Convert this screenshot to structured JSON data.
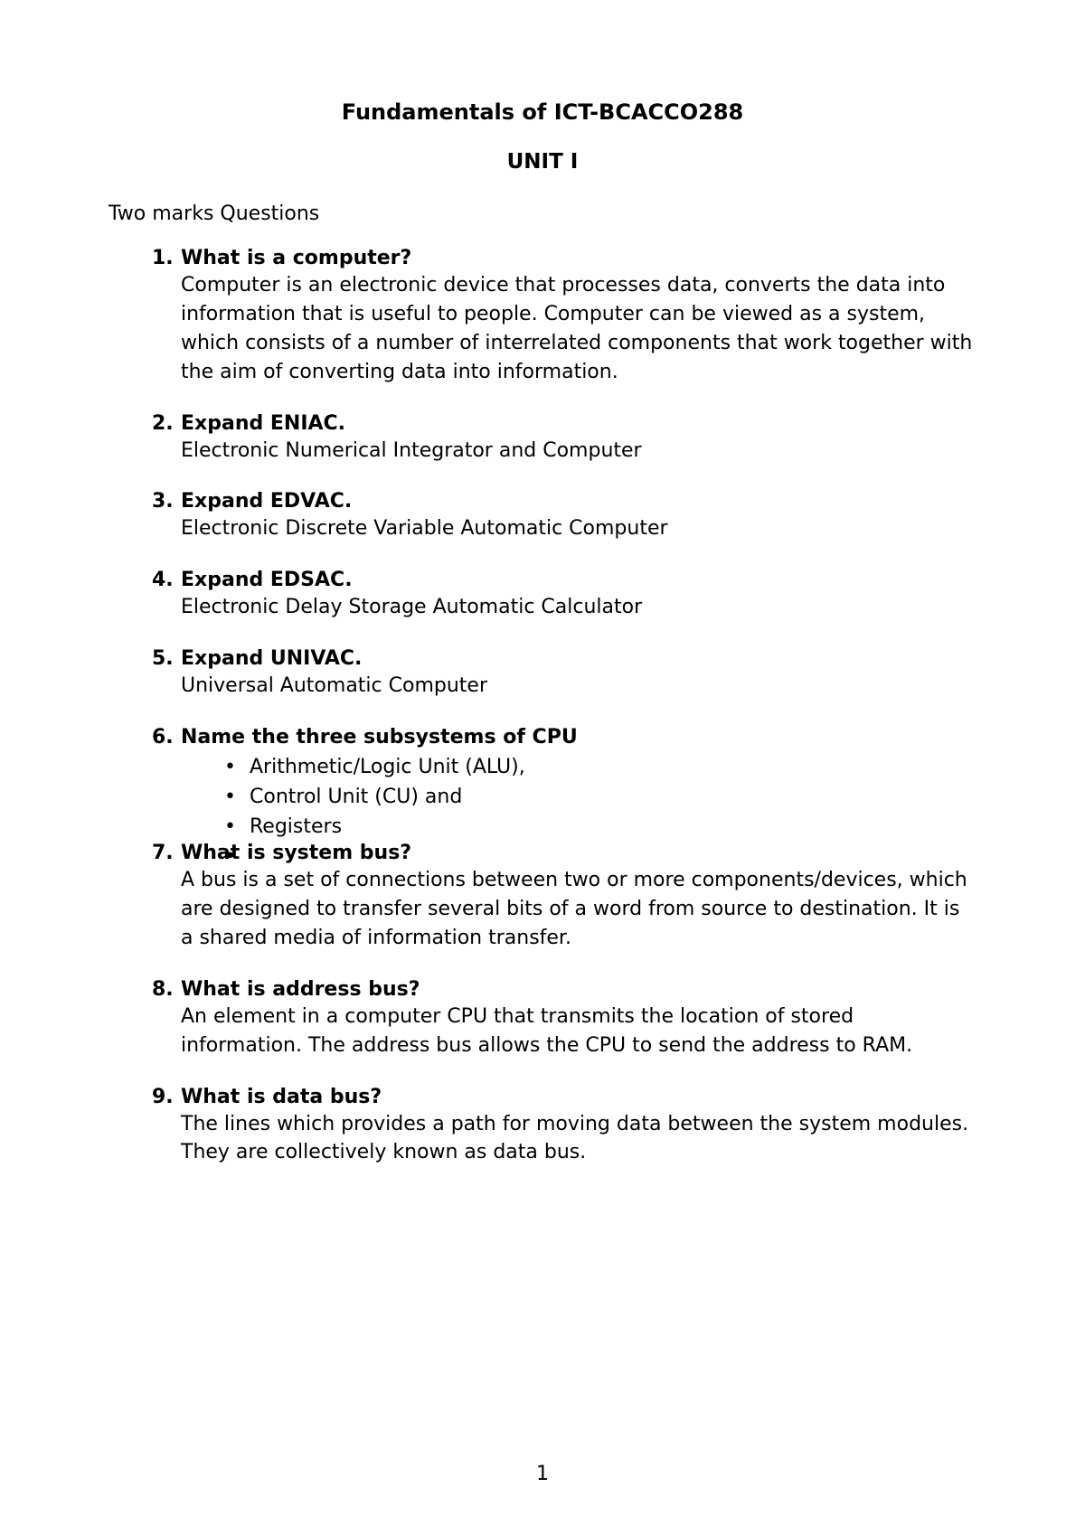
{
  "document": {
    "title": "Fundamentals of ICT-BCACCO288",
    "unit": "UNIT I",
    "section_header": "Two marks Questions",
    "page_number": "1",
    "colors": {
      "background": "#ffffff",
      "text": "#000000"
    },
    "typography": {
      "title_fontsize": 24,
      "body_fontsize": 22,
      "font_family": "DejaVu Sans"
    },
    "questions": [
      {
        "number": "1.",
        "question": "What is a computer?",
        "answer": " Computer is an electronic device that processes data, converts the data into information that is useful to people. Computer can be viewed as a system, which consists of a number of interrelated components that work together with the aim of converting data into information.",
        "bullets": []
      },
      {
        "number": "2.",
        "question": "Expand ENIAC.",
        "answer": "Electronic Numerical Integrator and Computer",
        "bullets": []
      },
      {
        "number": "3.",
        "question": "Expand EDVAC.",
        "answer": "Electronic Discrete Variable Automatic Computer",
        "bullets": []
      },
      {
        "number": "4.",
        "question": "Expand EDSAC.",
        "answer": "Electronic Delay Storage Automatic Calculator",
        "bullets": []
      },
      {
        "number": "5.",
        "question": "Expand UNIVAC.",
        "answer": "Universal Automatic Computer",
        "bullets": []
      },
      {
        "number": "6.",
        "question": "Name the three subsystems of CPU",
        "answer": "",
        "bullets": [
          "Arithmetic/Logic Unit (ALU),",
          "Control Unit (CU) and",
          "Registers",
          ""
        ]
      },
      {
        "number": "7.",
        "question": "What is system bus?",
        "answer": "A bus is a set of connections between two or more components/devices, which are designed to transfer several bits of a word from source to destination. It is a shared media of information transfer.",
        "bullets": []
      },
      {
        "number": "8.",
        "question": "What is address bus?",
        "answer": "An element in a computer CPU that transmits the location of stored information. The address bus allows the CPU to send the address to RAM.",
        "bullets": []
      },
      {
        "number": "9.",
        "question": "What is data bus?",
        "answer": "The lines which provides a path for moving data between the system modules. They are collectively known as data bus.",
        "bullets": []
      }
    ]
  }
}
